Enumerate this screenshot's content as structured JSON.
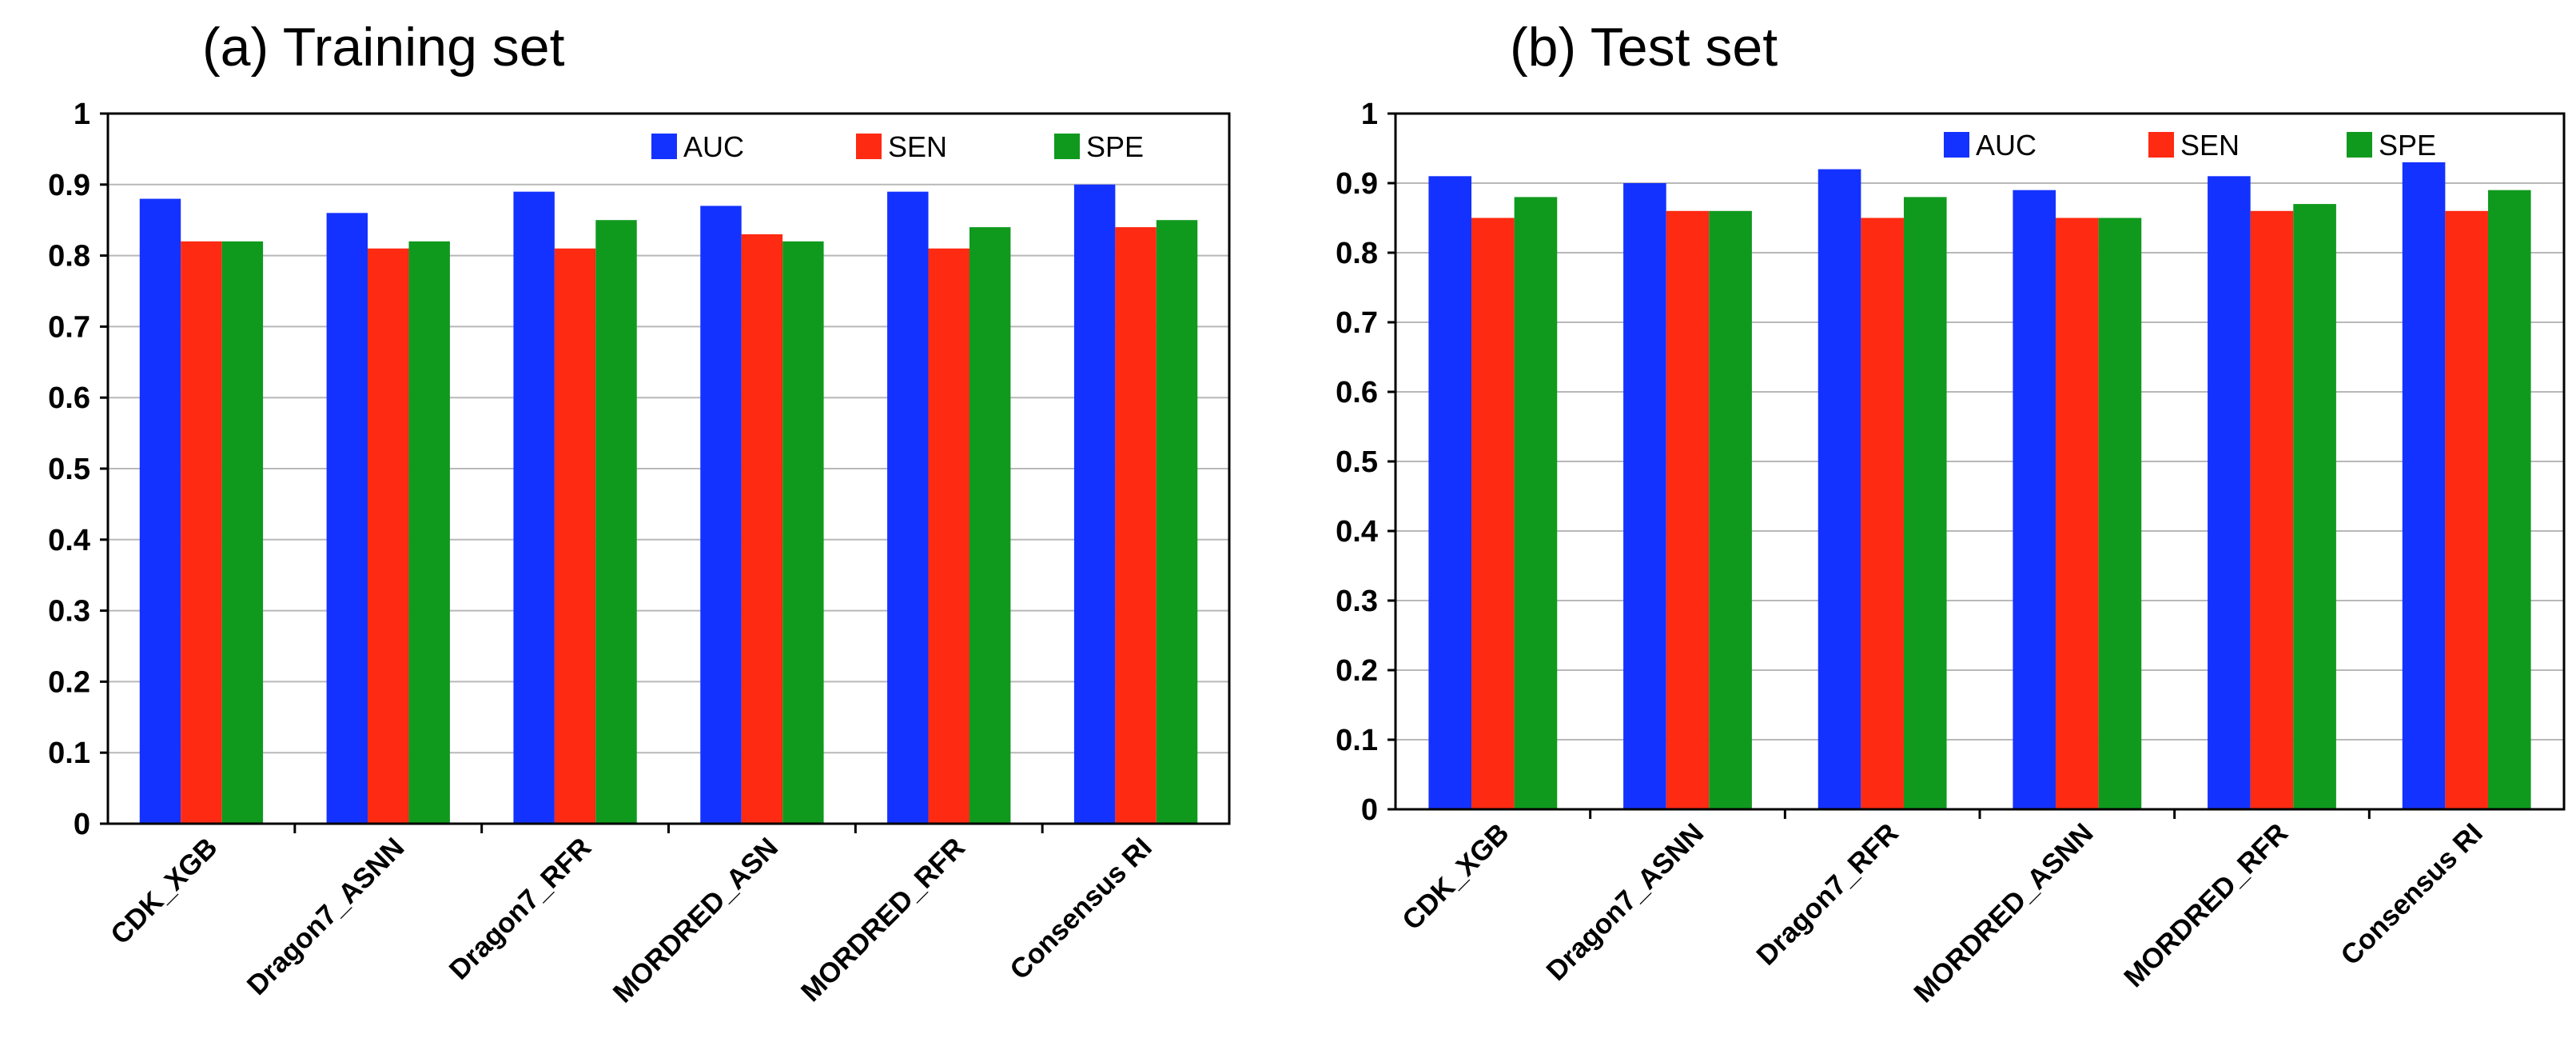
{
  "colors": {
    "AUC": "#1432ff",
    "SEN": "#ff2a12",
    "SPE": "#0f9a1e"
  },
  "chart_data": [
    {
      "type": "bar",
      "title": "(a) Training set",
      "xlabel": "",
      "ylabel": "",
      "ylim": [
        0,
        1
      ],
      "yticks": [
        "0",
        "0.1",
        "0.2",
        "0.3",
        "0.4",
        "0.5",
        "0.6",
        "0.7",
        "0.8",
        "0.9",
        "1"
      ],
      "grid": true,
      "legend_position": "top-right",
      "categories": [
        "CDK_XGB",
        "Dragon7_ASNN",
        "Dragon7_RFR",
        "MORDRED_ASN",
        "MORDRED_RFR",
        "Consensus RI"
      ],
      "series": [
        {
          "name": "AUC",
          "values": [
            0.88,
            0.86,
            0.89,
            0.87,
            0.89,
            0.9
          ]
        },
        {
          "name": "SEN",
          "values": [
            0.82,
            0.81,
            0.81,
            0.83,
            0.81,
            0.84
          ]
        },
        {
          "name": "SPE",
          "values": [
            0.82,
            0.82,
            0.85,
            0.82,
            0.84,
            0.85
          ]
        }
      ]
    },
    {
      "type": "bar",
      "title": "(b) Test set",
      "xlabel": "",
      "ylabel": "",
      "ylim": [
        0,
        1
      ],
      "yticks": [
        "0",
        "0.1",
        "0.2",
        "0.3",
        "0.4",
        "0.5",
        "0.6",
        "0.7",
        "0.8",
        "0.9",
        "1"
      ],
      "grid": true,
      "legend_position": "top-right",
      "categories": [
        "CDK_XGB",
        "Dragon7_ASNN",
        "Dragon7_RFR",
        "MORDRED_ASNN",
        "MORDRED_RFR",
        "Consensus RI"
      ],
      "series": [
        {
          "name": "AUC",
          "values": [
            0.91,
            0.9,
            0.92,
            0.89,
            0.91,
            0.93
          ]
        },
        {
          "name": "SEN",
          "values": [
            0.85,
            0.86,
            0.85,
            0.85,
            0.86,
            0.86
          ]
        },
        {
          "name": "SPE",
          "values": [
            0.88,
            0.86,
            0.88,
            0.85,
            0.87,
            0.89
          ]
        }
      ]
    }
  ]
}
